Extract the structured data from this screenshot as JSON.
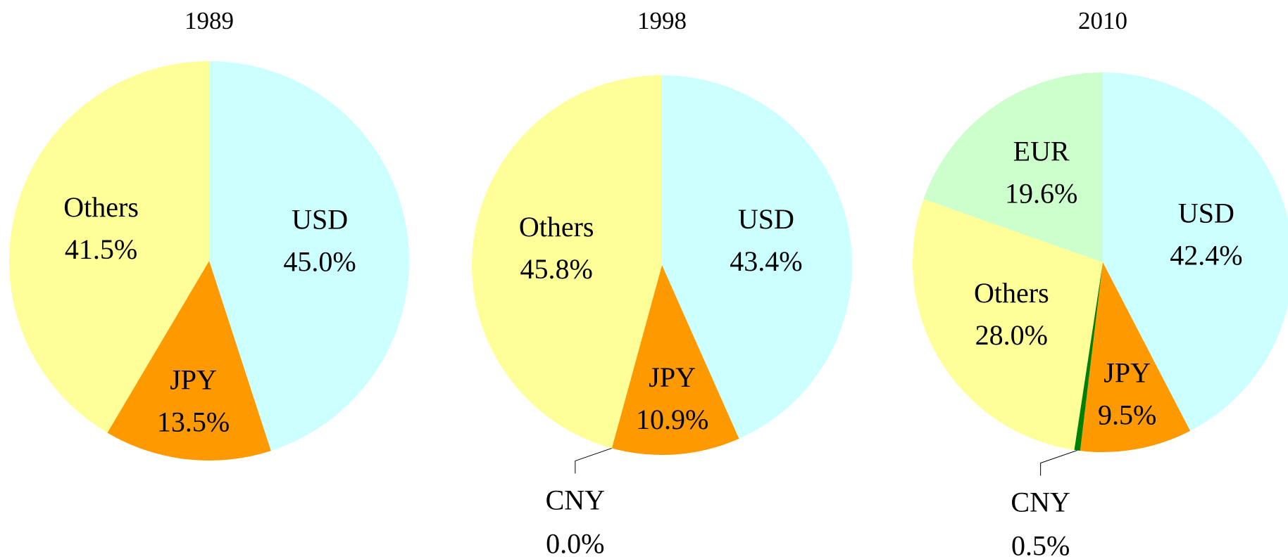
{
  "chart_data": [
    {
      "type": "pie",
      "title": "1989",
      "categories": [
        "USD",
        "JPY",
        "Others"
      ],
      "values": [
        45,
        13.5,
        41.5
      ],
      "value_labels": [
        "45.0%",
        "13.5%",
        "41.5%"
      ],
      "colors": [
        "#ccffff",
        "#ff9900",
        "#ffff99"
      ]
    },
    {
      "type": "pie",
      "title": "1998",
      "categories": [
        "USD",
        "JPY",
        "CNY",
        "Others"
      ],
      "values": [
        43.4,
        10.9,
        0,
        45.8
      ],
      "value_labels": [
        "43.4%",
        "10.9%",
        "0.0%",
        "45.8%"
      ],
      "colors": [
        "#ccffff",
        "#ff9900",
        "#008000",
        "#ffff99"
      ]
    },
    {
      "type": "pie",
      "title": "2010",
      "categories": [
        "USD",
        "JPY",
        "CNY",
        "Others",
        "EUR"
      ],
      "values": [
        42.4,
        9.5,
        0.5,
        28,
        19.6
      ],
      "value_labels": [
        "42.4%",
        "9.5%",
        "0.5%",
        "28.0%",
        "19.6%"
      ],
      "colors": [
        "#ccffff",
        "#ff9900",
        "#008000",
        "#ffff99",
        "#ccffcc"
      ]
    }
  ]
}
